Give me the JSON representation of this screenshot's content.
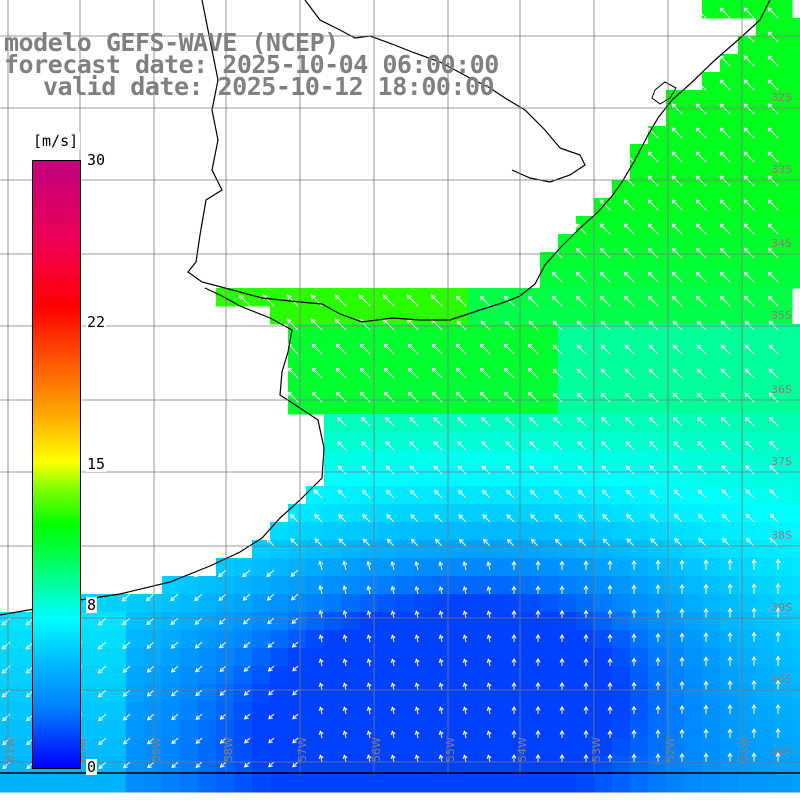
{
  "title": {
    "model": "modelo GEFS-WAVE (NCEP)",
    "forecast": "forecast date: 2025-10-04 06:00:00",
    "valid": "valid date: 2025-10-12 18:00:00"
  },
  "colorbar": {
    "unit": "[m/s]",
    "ticks": [
      {
        "label": "30",
        "value": 30
      },
      {
        "label": "22",
        "value": 22
      },
      {
        "label": "15",
        "value": 15
      },
      {
        "label": "8",
        "value": 8
      },
      {
        "label": "0",
        "value": 0
      }
    ],
    "min": 0,
    "max": 30
  },
  "map": {
    "lon_labels": [
      "61W",
      "60W",
      "59W",
      "58W",
      "57W",
      "56W",
      "55W",
      "54W",
      "53W",
      "52W",
      "51W"
    ],
    "lat_labels": [
      "32S",
      "33S",
      "34S",
      "35S",
      "36S",
      "37S",
      "38S",
      "39S",
      "40S",
      "41S"
    ],
    "colors": {
      "land": "#ffffff",
      "coast": "#000000",
      "grid": "#7a7a7a",
      "vector": "#ffffff",
      "axis_label": "#808080"
    }
  }
}
